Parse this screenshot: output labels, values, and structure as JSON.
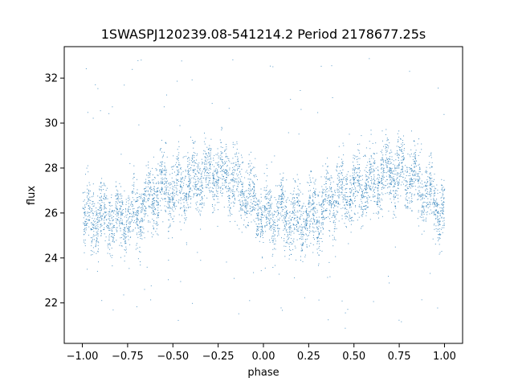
{
  "chart_data": {
    "type": "scatter",
    "title": "1SWASPJ120239.08-541214.2 Period 2178677.25s",
    "xlabel": "phase",
    "ylabel": "flux",
    "xlim": [
      -1.1,
      1.1
    ],
    "ylim": [
      20.2,
      33.4
    ],
    "xticks": [
      -1.0,
      -0.75,
      -0.5,
      -0.25,
      0.0,
      0.25,
      0.5,
      0.75,
      1.0
    ],
    "xtick_labels": [
      "−1.00",
      "−0.75",
      "−0.50",
      "−0.25",
      "0.00",
      "0.25",
      "0.50",
      "0.75",
      "1.00"
    ],
    "yticks": [
      22,
      24,
      26,
      28,
      30,
      32
    ],
    "ytick_labels": [
      "22",
      "24",
      "26",
      "28",
      "30",
      "32"
    ],
    "grid": false,
    "legend": "none",
    "marker_color": "#1f77b4",
    "series": [
      {
        "phase_profile": {
          "phase": [
            -1.0,
            -0.9,
            -0.8,
            -0.7,
            -0.6,
            -0.5,
            -0.4,
            -0.3,
            -0.2,
            -0.1,
            0.0,
            0.1,
            0.2,
            0.3,
            0.4,
            0.5,
            0.6,
            0.7,
            0.8,
            0.9,
            1.0
          ],
          "mean_flux": [
            25.9,
            25.9,
            25.6,
            26.0,
            26.9,
            27.0,
            27.4,
            27.9,
            27.6,
            26.9,
            25.9,
            25.9,
            25.6,
            26.0,
            26.9,
            27.0,
            27.4,
            27.9,
            27.6,
            26.9,
            25.9
          ]
        },
        "scatter_band": 1.2,
        "outlier_range": [
          20.8,
          32.9
        ]
      }
    ]
  }
}
